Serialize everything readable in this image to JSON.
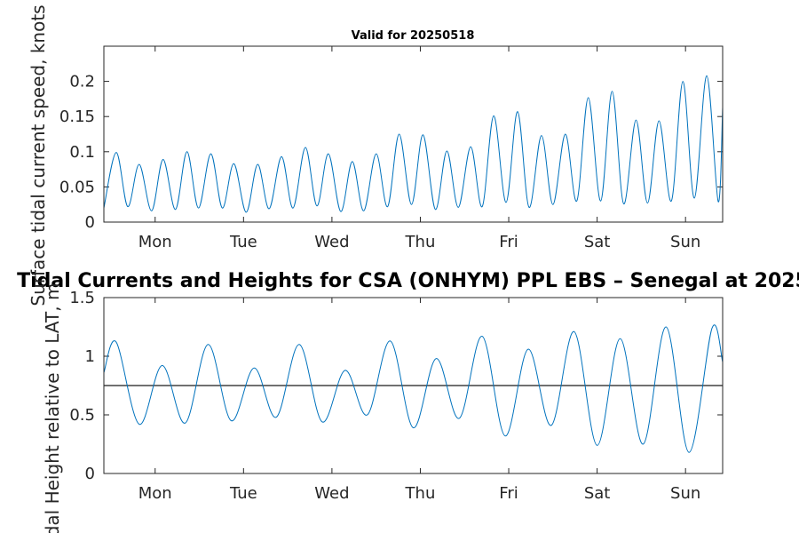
{
  "colors": {
    "series": "#0072bd",
    "reference_line": "#404040",
    "axes": "#262626",
    "background": "#ffffff"
  },
  "chart_data": [
    {
      "type": "line",
      "title": "Valid for 20250518",
      "ylabel": "Surface tidal current speed, knots",
      "xlabel": "",
      "xlim": [
        0,
        7
      ],
      "ylim": [
        0,
        0.25
      ],
      "yticks": [
        0,
        0.05,
        0.1,
        0.15,
        0.2
      ],
      "ytick_labels": [
        "0",
        "0.05",
        "0.1",
        "0.15",
        "0.2"
      ],
      "xticks": [
        0.58,
        1.58,
        2.58,
        3.58,
        4.58,
        5.58,
        6.58
      ],
      "xtick_labels": [
        "Mon",
        "Tue",
        "Wed",
        "Thu",
        "Fri",
        "Sat",
        "Sun"
      ],
      "grid": false,
      "series": [
        {
          "x": [
            0.0,
            0.14,
            0.27,
            0.4,
            0.54,
            0.67,
            0.81,
            0.94,
            1.07,
            1.21,
            1.34,
            1.47,
            1.61,
            1.74,
            1.87,
            2.01,
            2.14,
            2.28,
            2.41,
            2.54,
            2.68,
            2.81,
            2.94,
            3.08,
            3.21,
            3.34,
            3.48,
            3.61,
            3.75,
            3.88,
            4.01,
            4.15,
            4.28,
            4.41,
            4.55,
            4.68,
            4.81,
            4.95,
            5.08,
            5.22,
            5.35,
            5.48,
            5.62,
            5.75,
            5.88,
            6.02,
            6.15,
            6.28,
            6.42,
            6.55,
            6.68,
            6.82,
            6.95,
            7.0
          ],
          "y": [
            0.02,
            0.099,
            0.022,
            0.082,
            0.016,
            0.089,
            0.018,
            0.1,
            0.02,
            0.097,
            0.02,
            0.083,
            0.014,
            0.082,
            0.019,
            0.093,
            0.02,
            0.106,
            0.023,
            0.097,
            0.015,
            0.086,
            0.016,
            0.097,
            0.022,
            0.125,
            0.025,
            0.124,
            0.018,
            0.101,
            0.021,
            0.107,
            0.022,
            0.151,
            0.028,
            0.157,
            0.021,
            0.123,
            0.025,
            0.125,
            0.03,
            0.177,
            0.03,
            0.186,
            0.026,
            0.145,
            0.027,
            0.144,
            0.03,
            0.2,
            0.034,
            0.208,
            0.029,
            0.163
          ]
        }
      ]
    },
    {
      "type": "line",
      "title": "Tidal Currents and Heights for CSA (ONHYM) PPL EBS  – Senegal at 2025",
      "ylabel": "Tidal Height relative to LAT, m",
      "xlabel": "",
      "xlim": [
        0,
        7
      ],
      "ylim": [
        0,
        1.5
      ],
      "yticks": [
        0,
        0.5,
        1,
        1.5
      ],
      "ytick_labels": [
        "0",
        "0.5",
        "1",
        "1.5"
      ],
      "xticks": [
        0.58,
        1.58,
        2.58,
        3.58,
        4.58,
        5.58,
        6.58
      ],
      "xtick_labels": [
        "Mon",
        "Tue",
        "Wed",
        "Thu",
        "Fri",
        "Sat",
        "Sun"
      ],
      "reference_line": 0.75,
      "grid": false,
      "series": [
        {
          "x": [
            0.0,
            0.14,
            0.4,
            0.66,
            0.92,
            1.18,
            1.44,
            1.7,
            1.95,
            2.21,
            2.47,
            2.73,
            2.98,
            3.24,
            3.5,
            3.76,
            4.02,
            4.28,
            4.54,
            4.8,
            5.06,
            5.32,
            5.58,
            5.84,
            6.1,
            6.36,
            6.62,
            6.88,
            7.0
          ],
          "y": [
            0.86,
            1.12,
            0.42,
            0.92,
            0.43,
            1.1,
            0.45,
            0.9,
            0.48,
            1.1,
            0.44,
            0.88,
            0.5,
            1.13,
            0.39,
            0.98,
            0.47,
            1.17,
            0.32,
            1.06,
            0.41,
            1.21,
            0.24,
            1.15,
            0.25,
            1.25,
            0.18,
            1.24,
            0.95
          ]
        }
      ]
    }
  ]
}
